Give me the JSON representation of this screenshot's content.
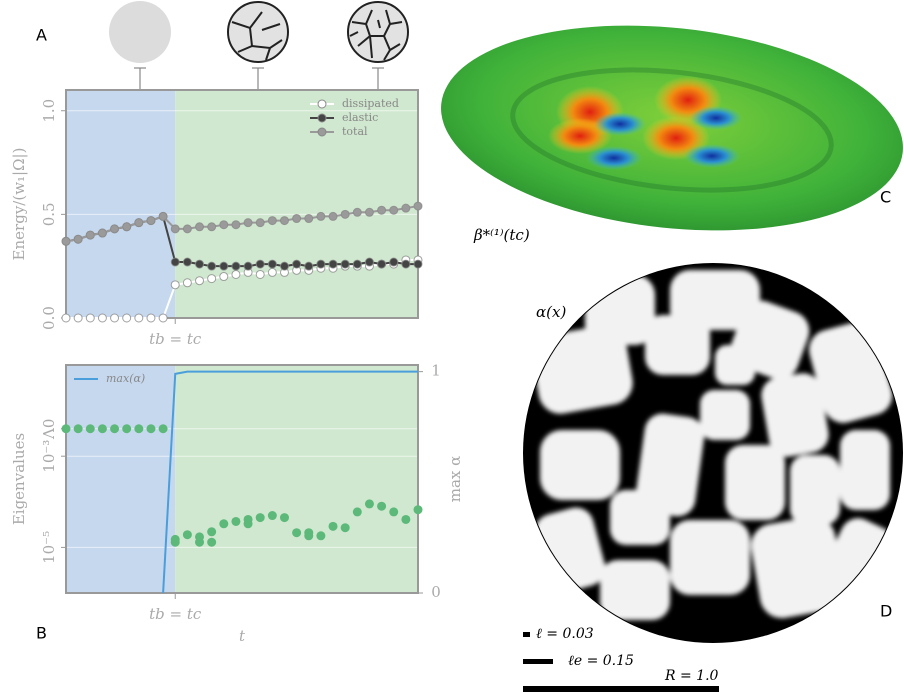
{
  "panels": {
    "a": "A",
    "b": "B",
    "c": "C",
    "d": "D"
  },
  "surface_label": "β*⁽¹⁾(tc)",
  "field_label": "α(x)",
  "scale_bars": [
    {
      "label": "ℓ = 0.03"
    },
    {
      "label": "ℓe = 0.15"
    },
    {
      "label": "R = 1.0"
    }
  ],
  "chart_data": [
    {
      "type": "line",
      "ylabel": "Energy/(w₁|Ω|)",
      "x": [
        0,
        1,
        2,
        3,
        4,
        5,
        6,
        7,
        8,
        9,
        10,
        11,
        12,
        13,
        14,
        15,
        16,
        17,
        18,
        19,
        20,
        21,
        22,
        23,
        24,
        25,
        26,
        27,
        28,
        29
      ],
      "xlim": [
        0,
        29
      ],
      "xticks": [
        {
          "value": 9,
          "label": "tb = tc"
        }
      ],
      "ylim": [
        0,
        1.1
      ],
      "yticks": [
        {
          "value": 0,
          "label": "0.0"
        },
        {
          "value": 0.5,
          "label": "0.5"
        },
        {
          "value": 1,
          "label": "1.0"
        }
      ],
      "grid": true,
      "legend": "upper right",
      "region_colors": [
        "#c6d8ee",
        "#d0e8cf"
      ],
      "series": [
        {
          "name": "dissipated",
          "color": "#ffffff",
          "values": [
            0,
            0,
            0,
            0,
            0,
            0,
            0,
            0,
            0,
            0.16,
            0.17,
            0.18,
            0.19,
            0.2,
            0.21,
            0.22,
            0.21,
            0.22,
            0.22,
            0.23,
            0.23,
            0.24,
            0.24,
            0.25,
            0.25,
            0.25,
            0.26,
            0.26,
            0.28,
            0.28
          ]
        },
        {
          "name": "elastic",
          "color": "#444444",
          "values": [
            0.37,
            0.38,
            0.4,
            0.41,
            0.43,
            0.44,
            0.46,
            0.47,
            0.49,
            0.27,
            0.27,
            0.26,
            0.25,
            0.25,
            0.25,
            0.25,
            0.26,
            0.26,
            0.25,
            0.26,
            0.25,
            0.26,
            0.26,
            0.26,
            0.26,
            0.27,
            0.26,
            0.27,
            0.26,
            0.26
          ]
        },
        {
          "name": "total",
          "color": "#9a9a9a",
          "values": [
            0.37,
            0.38,
            0.4,
            0.41,
            0.43,
            0.44,
            0.46,
            0.47,
            0.49,
            0.43,
            0.43,
            0.44,
            0.44,
            0.45,
            0.45,
            0.46,
            0.46,
            0.47,
            0.47,
            0.48,
            0.48,
            0.49,
            0.49,
            0.5,
            0.51,
            0.51,
            0.52,
            0.52,
            0.53,
            0.54
          ]
        }
      ]
    },
    {
      "type": "scatter",
      "ylabel": "Eigenvalues",
      "xlabel": "t",
      "y2label": "max α",
      "xlim": [
        0,
        29
      ],
      "xticks": [
        {
          "value": 9,
          "label": "tb = tc"
        }
      ],
      "ylim": [
        1e-06,
        0.1
      ],
      "log_y": true,
      "yticks": [
        {
          "value": 0.004,
          "label": "Λ0"
        },
        {
          "value": 0.001,
          "label": "10⁻³"
        },
        {
          "value": 1e-05,
          "label": "10⁻⁵"
        }
      ],
      "y2lim": [
        0,
        1.03
      ],
      "y2ticks": [
        0,
        1
      ],
      "grid": true,
      "legend": "upper left",
      "region_colors": [
        "#c6d8ee",
        "#d0e8cf"
      ],
      "series": [
        {
          "color": "#5cb97a",
          "x": [
            0,
            1,
            2,
            3,
            4,
            5,
            6,
            7,
            8,
            9,
            9,
            10,
            11,
            11,
            12,
            12,
            13,
            14,
            15,
            15,
            16,
            17,
            18,
            19,
            20,
            20,
            21,
            22,
            23,
            24,
            25,
            26,
            27,
            28,
            29
          ],
          "values": [
            0.004,
            0.004,
            0.004,
            0.004,
            0.004,
            0.004,
            0.004,
            0.004,
            0.004,
            1.5e-05,
            1.3e-05,
            1.9e-05,
            1.7e-05,
            1.3e-05,
            2.2e-05,
            1.3e-05,
            3.3e-05,
            3.7e-05,
            4.1e-05,
            3.3e-05,
            4.5e-05,
            5e-05,
            4.5e-05,
            2.1e-05,
            2.1e-05,
            1.8e-05,
            1.8e-05,
            2.9e-05,
            2.7e-05,
            6e-05,
            9e-05,
            8e-05,
            6e-05,
            4.1e-05,
            6.7e-05
          ]
        },
        {
          "name": "max(α)",
          "color": "#4a9edb",
          "axis": "y2",
          "x": [
            8,
            9,
            10,
            29
          ],
          "values": [
            0,
            0.99,
            1,
            1
          ]
        }
      ]
    }
  ]
}
